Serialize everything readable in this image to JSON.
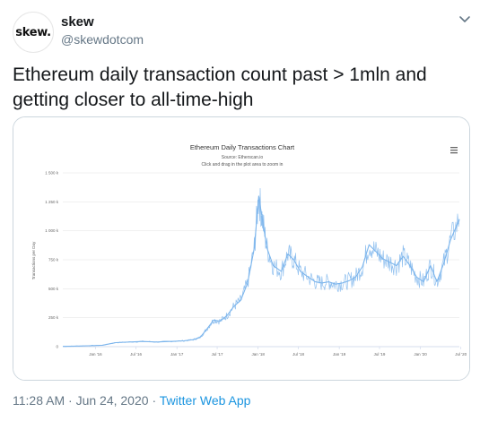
{
  "tweet": {
    "display_name": "skew",
    "handle": "@skewdotcom",
    "avatar_text": "skew.",
    "text": "Ethereum daily transaction count past > 1mln and getting closer to all-time-high",
    "time": "11:28 AM",
    "date": "Jun 24, 2020",
    "separator": "·",
    "source": "Twitter Web App"
  },
  "chart_data": {
    "type": "line",
    "title": "Ethereum Daily Transactions Chart",
    "subtitle": "Source: Etherscan.io",
    "hint": "Click and drag in the plot area to zoom in",
    "ylabel": "Transactions per Day",
    "xlabel": "",
    "ylim": [
      0,
      1500000
    ],
    "y_ticks": [
      "0",
      "250 k",
      "500 k",
      "750 k",
      "1 000 k",
      "1 250 k",
      "1 500 k"
    ],
    "y_tick_values": [
      0,
      250000,
      500000,
      750000,
      1000000,
      1250000,
      1500000
    ],
    "x_ticks": [
      "Jan '16",
      "Jul '16",
      "Jan '17",
      "Jul '17",
      "Jan '18",
      "Jul '18",
      "Jan '19",
      "Jul '19",
      "Jan '20",
      "Jul '20"
    ],
    "x_tick_dates": [
      "2016-01-01",
      "2016-07-01",
      "2017-01-01",
      "2017-07-01",
      "2018-01-01",
      "2018-07-01",
      "2019-01-01",
      "2019-07-01",
      "2020-01-01",
      "2020-07-01"
    ],
    "xlim": [
      "2015-08-07",
      "2020-06-24"
    ],
    "series": [
      {
        "color": "#7cb5ec",
        "points": [
          [
            "2015-08-07",
            2000
          ],
          [
            "2015-10-01",
            5000
          ],
          [
            "2015-12-01",
            8000
          ],
          [
            "2016-02-01",
            12000
          ],
          [
            "2016-04-01",
            35000
          ],
          [
            "2016-06-01",
            40000
          ],
          [
            "2016-08-01",
            45000
          ],
          [
            "2016-10-01",
            40000
          ],
          [
            "2016-12-01",
            45000
          ],
          [
            "2017-02-01",
            50000
          ],
          [
            "2017-03-15",
            60000
          ],
          [
            "2017-04-15",
            80000
          ],
          [
            "2017-05-15",
            150000
          ],
          [
            "2017-06-15",
            230000
          ],
          [
            "2017-07-15",
            220000
          ],
          [
            "2017-08-15",
            270000
          ],
          [
            "2017-09-15",
            350000
          ],
          [
            "2017-10-15",
            400000
          ],
          [
            "2017-11-15",
            550000
          ],
          [
            "2017-12-15",
            850000
          ],
          [
            "2018-01-04",
            1300000
          ],
          [
            "2018-01-20",
            1100000
          ],
          [
            "2018-02-10",
            850000
          ],
          [
            "2018-03-10",
            700000
          ],
          [
            "2018-04-15",
            650000
          ],
          [
            "2018-05-15",
            800000
          ],
          [
            "2018-06-10",
            750000
          ],
          [
            "2018-07-10",
            650000
          ],
          [
            "2018-08-15",
            600000
          ],
          [
            "2018-09-15",
            560000
          ],
          [
            "2018-10-15",
            550000
          ],
          [
            "2018-11-15",
            560000
          ],
          [
            "2018-12-15",
            540000
          ],
          [
            "2019-01-15",
            550000
          ],
          [
            "2019-02-15",
            570000
          ],
          [
            "2019-03-15",
            600000
          ],
          [
            "2019-04-15",
            690000
          ],
          [
            "2019-05-15",
            880000
          ],
          [
            "2019-06-15",
            820000
          ],
          [
            "2019-07-15",
            760000
          ],
          [
            "2019-08-15",
            730000
          ],
          [
            "2019-09-15",
            700000
          ],
          [
            "2019-10-15",
            780000
          ],
          [
            "2019-11-15",
            700000
          ],
          [
            "2019-12-15",
            600000
          ],
          [
            "2020-01-15",
            560000
          ],
          [
            "2020-02-15",
            700000
          ],
          [
            "2020-03-15",
            560000
          ],
          [
            "2020-04-15",
            720000
          ],
          [
            "2020-05-15",
            920000
          ],
          [
            "2020-06-24",
            1100000
          ]
        ]
      }
    ]
  }
}
